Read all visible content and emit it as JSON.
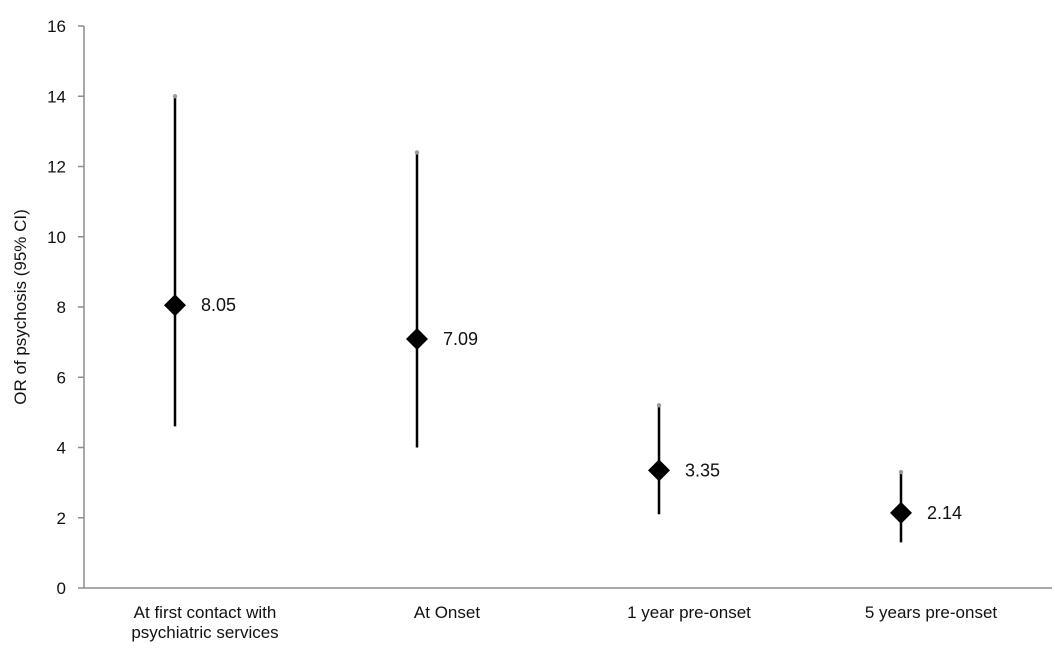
{
  "chart_data": {
    "type": "scatter",
    "xlabel": "",
    "ylabel": "OR of psychosis (95% CI)",
    "ylim": [
      0,
      16
    ],
    "yticks": [
      0,
      2,
      4,
      6,
      8,
      10,
      12,
      14,
      16
    ],
    "grid": false,
    "categories": [
      [
        "At first contact with",
        "psychiatric services"
      ],
      [
        "At Onset"
      ],
      [
        "1 year pre-onset"
      ],
      [
        "5 years pre-onset"
      ]
    ],
    "points": [
      {
        "value": 8.05,
        "ci_low": 4.6,
        "ci_high": 14.0,
        "label": "8.05"
      },
      {
        "value": 7.09,
        "ci_low": 4.0,
        "ci_high": 12.4,
        "label": "7.09"
      },
      {
        "value": 3.35,
        "ci_low": 2.1,
        "ci_high": 5.2,
        "label": "3.35"
      },
      {
        "value": 2.14,
        "ci_low": 1.3,
        "ci_high": 3.3,
        "label": "2.14"
      }
    ],
    "colors": {
      "marker": "#000000",
      "error_bar": "#000000",
      "axis": "#8c8c8c"
    }
  }
}
